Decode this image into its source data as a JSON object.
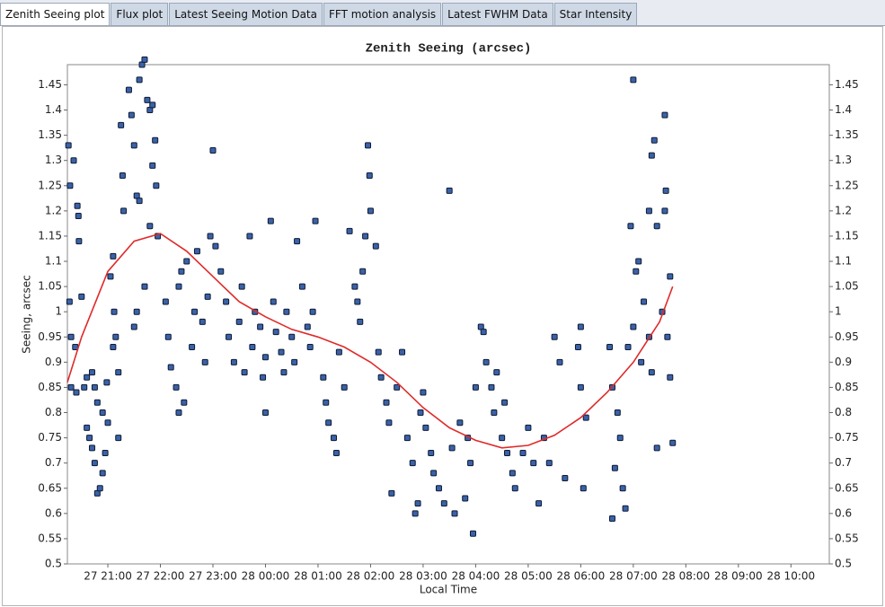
{
  "tabs": [
    "Zenith Seeing plot",
    "Flux plot",
    "Latest Seeing Motion Data",
    "FFT motion analysis",
    "Latest FWHM Data",
    "Star Intensity"
  ],
  "chart_data": {
    "type": "scatter",
    "title": "Zenith Seeing   (arcsec)",
    "x_label": "Local Time",
    "y_label": "Seeing, arcsec",
    "xlim": [
      20.23,
      34.73
    ],
    "ylim": [
      0.5,
      1.49
    ],
    "xticks": [
      {
        "value": 21,
        "label": "27 21:00"
      },
      {
        "value": 22,
        "label": "27 22:00"
      },
      {
        "value": 23,
        "label": "27 23:00"
      },
      {
        "value": 24,
        "label": "28 00:00"
      },
      {
        "value": 25,
        "label": "28 01:00"
      },
      {
        "value": 26,
        "label": "28 02:00"
      },
      {
        "value": 27,
        "label": "28 03:00"
      },
      {
        "value": 28,
        "label": "28 04:00"
      },
      {
        "value": 29,
        "label": "28 05:00"
      },
      {
        "value": 30,
        "label": "28 06:00"
      },
      {
        "value": 31,
        "label": "28 07:00"
      },
      {
        "value": 32,
        "label": "28 08:00"
      },
      {
        "value": 33,
        "label": "28 09:00"
      },
      {
        "value": 34,
        "label": "28 10:00"
      }
    ],
    "yticks": [
      0.5,
      0.55,
      0.6,
      0.65,
      0.7,
      0.75,
      0.8,
      0.85,
      0.9,
      0.95,
      1,
      1.05,
      1.1,
      1.15,
      1.2,
      1.25,
      1.3,
      1.35,
      1.4,
      1.45
    ],
    "right_axis": true,
    "series": [
      {
        "mode": "markers",
        "color": "#3b62a8",
        "x": [
          20.25,
          20.28,
          20.35,
          20.3,
          20.27,
          20.3,
          20.38,
          20.4,
          20.42,
          20.44,
          20.45,
          20.5,
          20.55,
          20.6,
          20.6,
          20.65,
          20.7,
          20.75,
          20.8,
          20.85,
          20.9,
          20.7,
          20.8,
          20.95,
          20.9,
          21.0,
          20.98,
          20.75,
          21.05,
          21.1,
          21.12,
          21.15,
          21.1,
          21.2,
          21.2,
          21.25,
          21.28,
          21.3,
          21.4,
          21.45,
          21.5,
          21.55,
          21.6,
          21.6,
          21.65,
          21.7,
          21.75,
          21.8,
          21.85,
          21.9,
          21.92,
          21.95,
          21.7,
          21.55,
          21.8,
          21.5,
          21.85,
          22.1,
          22.15,
          22.2,
          22.3,
          22.35,
          22.4,
          22.45,
          22.5,
          22.6,
          22.65,
          22.7,
          22.8,
          22.85,
          22.9,
          22.95,
          22.35,
          23.0,
          23.05,
          23.15,
          23.25,
          23.3,
          23.4,
          23.5,
          23.55,
          23.6,
          23.7,
          23.75,
          23.8,
          23.9,
          23.95,
          24.0,
          24.1,
          24.15,
          24.2,
          24.3,
          24.35,
          24.4,
          24.5,
          24.55,
          24.6,
          24.7,
          24.8,
          24.85,
          24.95,
          24.9,
          24.0,
          25.1,
          25.15,
          25.2,
          25.3,
          25.35,
          25.4,
          25.5,
          25.6,
          25.7,
          25.75,
          25.8,
          25.95,
          25.98,
          25.9,
          25.85,
          26.0,
          26.1,
          26.15,
          26.2,
          26.3,
          26.35,
          26.4,
          26.5,
          26.6,
          26.7,
          26.85,
          26.9,
          26.95,
          26.8,
          27.0,
          27.05,
          27.15,
          27.2,
          27.3,
          27.4,
          27.5,
          27.55,
          27.6,
          27.7,
          27.8,
          27.95,
          27.9,
          27.85,
          28.0,
          28.1,
          28.15,
          28.2,
          28.3,
          28.35,
          28.5,
          28.6,
          28.7,
          28.75,
          28.9,
          29.0,
          29.1,
          29.2,
          28.4,
          28.55,
          29.5,
          29.6,
          29.3,
          29.4,
          29.7,
          29.95,
          30.0,
          30.0,
          30.05,
          30.1,
          30.55,
          30.6,
          30.7,
          30.75,
          30.65,
          30.8,
          30.6,
          30.85,
          30.95,
          30.9,
          31.05,
          31.1,
          31.0,
          31.15,
          31.0,
          31.2,
          31.35,
          31.4,
          31.3,
          31.45,
          31.3,
          31.35,
          31.45,
          31.6,
          31.62,
          31.6,
          31.7,
          31.55,
          31.65,
          31.7,
          31.75
        ],
        "values": [
          1.33,
          1.25,
          1.3,
          0.95,
          1.02,
          0.85,
          0.93,
          0.84,
          1.21,
          1.19,
          1.14,
          1.03,
          0.85,
          0.87,
          0.77,
          0.75,
          0.73,
          0.7,
          0.64,
          0.65,
          0.8,
          0.88,
          0.82,
          0.72,
          0.68,
          0.78,
          0.86,
          0.85,
          1.07,
          1.11,
          1.0,
          0.95,
          0.93,
          0.88,
          0.75,
          1.37,
          1.27,
          1.2,
          1.44,
          1.39,
          1.33,
          1.23,
          1.22,
          1.46,
          1.49,
          1.5,
          1.42,
          1.4,
          1.29,
          1.34,
          1.25,
          1.15,
          1.05,
          1.0,
          1.17,
          0.97,
          1.41,
          1.02,
          0.95,
          0.89,
          0.85,
          1.05,
          1.08,
          0.82,
          1.1,
          0.93,
          1.0,
          1.12,
          0.98,
          0.9,
          1.03,
          1.15,
          0.8,
          1.32,
          1.13,
          1.08,
          1.02,
          0.95,
          0.9,
          0.98,
          1.05,
          0.88,
          1.15,
          0.93,
          1.0,
          0.97,
          0.87,
          0.91,
          1.18,
          1.02,
          0.96,
          0.92,
          0.88,
          1.0,
          0.95,
          0.9,
          1.14,
          1.05,
          0.97,
          0.93,
          1.18,
          1.0,
          0.8,
          0.87,
          0.82,
          0.78,
          0.75,
          0.72,
          0.92,
          0.85,
          1.16,
          1.05,
          1.02,
          0.98,
          1.33,
          1.27,
          1.15,
          1.08,
          1.2,
          1.13,
          0.92,
          0.87,
          0.82,
          0.78,
          0.64,
          0.85,
          0.92,
          0.75,
          0.6,
          0.62,
          0.8,
          0.7,
          0.84,
          0.77,
          0.72,
          0.68,
          0.65,
          0.62,
          1.24,
          0.73,
          0.6,
          0.78,
          0.63,
          0.56,
          0.7,
          0.75,
          0.85,
          0.97,
          0.96,
          0.9,
          0.85,
          0.8,
          0.75,
          0.72,
          0.68,
          0.65,
          0.72,
          0.77,
          0.7,
          0.62,
          0.88,
          0.82,
          0.95,
          0.9,
          0.75,
          0.7,
          0.67,
          0.93,
          0.97,
          0.85,
          0.65,
          0.79,
          0.93,
          0.85,
          0.8,
          0.75,
          0.69,
          0.65,
          0.59,
          0.61,
          1.17,
          0.93,
          1.08,
          1.1,
          0.97,
          0.9,
          1.46,
          1.02,
          1.31,
          1.34,
          1.2,
          1.17,
          0.95,
          0.88,
          0.73,
          1.39,
          1.24,
          1.2,
          1.07,
          1.0,
          0.95,
          0.87,
          0.74
        ]
      },
      {
        "mode": "line",
        "color": "#e02a2a",
        "x": [
          20.23,
          20.5,
          21,
          21.5,
          22,
          22.5,
          23,
          23.5,
          24,
          24.5,
          25,
          25.5,
          26,
          26.5,
          27,
          27.5,
          28,
          28.5,
          29,
          29.5,
          30,
          30.5,
          31,
          31.5,
          31.75
        ],
        "values": [
          0.86,
          0.95,
          1.08,
          1.14,
          1.155,
          1.12,
          1.07,
          1.02,
          0.99,
          0.965,
          0.95,
          0.93,
          0.9,
          0.86,
          0.81,
          0.77,
          0.745,
          0.73,
          0.735,
          0.755,
          0.79,
          0.84,
          0.9,
          0.98,
          1.05
        ]
      }
    ]
  }
}
